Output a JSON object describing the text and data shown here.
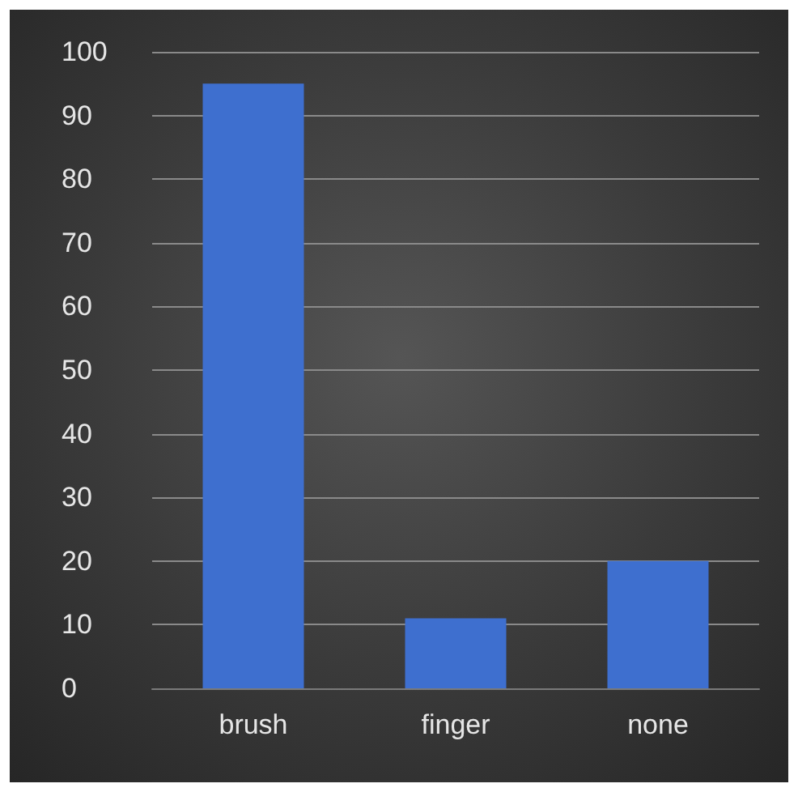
{
  "chart_data": {
    "type": "bar",
    "categories": [
      "brush",
      "finger",
      "none"
    ],
    "values": [
      95,
      11,
      20
    ],
    "color": "#3e6fcf",
    "ylim": [
      0,
      100
    ],
    "yticks": [
      0,
      10,
      20,
      30,
      40,
      50,
      60,
      70,
      80,
      90,
      100
    ],
    "grid": "y"
  }
}
